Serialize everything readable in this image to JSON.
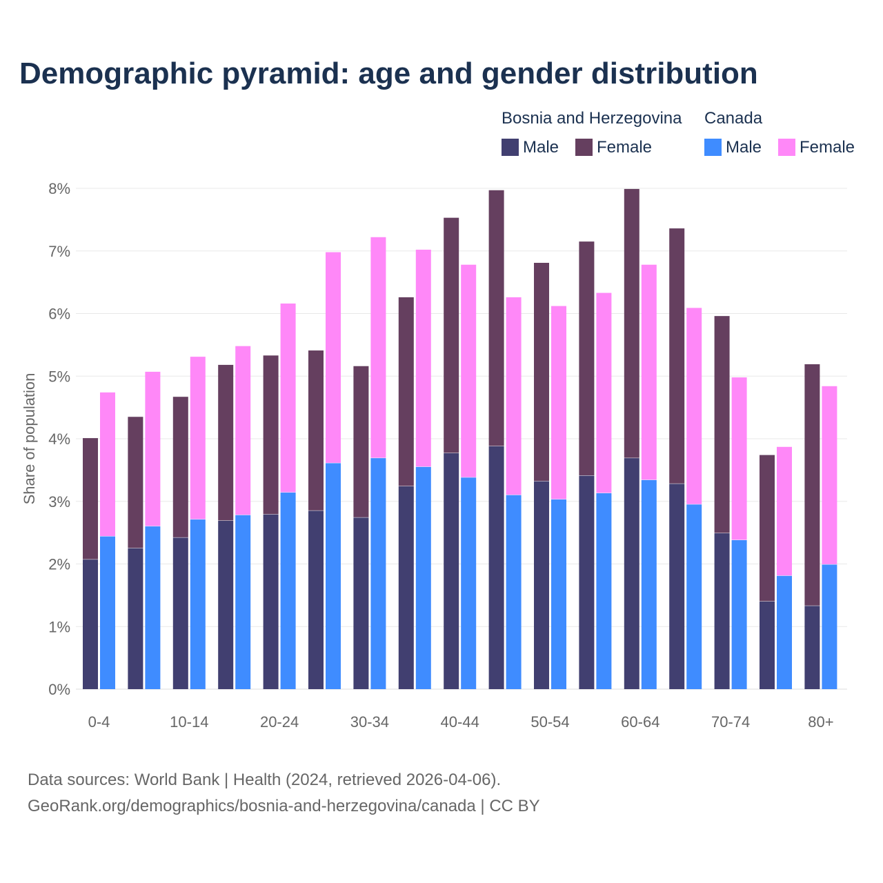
{
  "title": "Demographic pyramid: age and gender distribution",
  "legend": {
    "group1": "Bosnia and Herzegovina",
    "group2": "Canada",
    "male": "Male",
    "female": "Female"
  },
  "colors": {
    "bih_male": "#413f70",
    "bih_female": "#653f5f",
    "can_male": "#3f8cff",
    "can_female": "#ff88f8"
  },
  "source_line1": "Data sources: World Bank | Health (2024, retrieved 2026-04-06).",
  "source_line2": "GeoRank.org/demographics/bosnia-and-herzegovina/canada | CC BY",
  "chart_data": {
    "type": "bar",
    "stacked": true,
    "title": "Demographic pyramid: age and gender distribution",
    "xlabel": "",
    "ylabel": "Share of population",
    "ylim": [
      0,
      8
    ],
    "yticks": [
      "0%",
      "1%",
      "2%",
      "3%",
      "4%",
      "5%",
      "6%",
      "7%",
      "8%"
    ],
    "categories": [
      "0-4",
      "5-9",
      "10-14",
      "15-19",
      "20-24",
      "25-29",
      "30-34",
      "35-39",
      "40-44",
      "45-49",
      "50-54",
      "55-59",
      "60-64",
      "65-69",
      "70-74",
      "75-79",
      "80+"
    ],
    "xtick_labels": [
      "0-4",
      "10-14",
      "20-24",
      "30-34",
      "40-44",
      "50-54",
      "60-64",
      "70-74",
      "80+"
    ],
    "series": [
      {
        "name": "Bosnia and Herzegovina Male",
        "stack": "Bosnia and Herzegovina",
        "values": [
          2.07,
          2.25,
          2.42,
          2.69,
          2.79,
          2.85,
          2.74,
          3.24,
          3.77,
          3.88,
          3.32,
          3.41,
          3.69,
          3.28,
          2.49,
          1.4,
          1.33
        ]
      },
      {
        "name": "Bosnia and Herzegovina Female",
        "stack": "Bosnia and Herzegovina",
        "values": [
          1.94,
          2.1,
          2.25,
          2.49,
          2.54,
          2.56,
          2.42,
          3.02,
          3.76,
          4.09,
          3.49,
          3.74,
          4.3,
          4.08,
          3.47,
          2.34,
          3.86
        ]
      },
      {
        "name": "Canada Male",
        "stack": "Canada",
        "values": [
          2.44,
          2.6,
          2.71,
          2.78,
          3.14,
          3.61,
          3.69,
          3.55,
          3.38,
          3.1,
          3.03,
          3.13,
          3.34,
          2.95,
          2.38,
          1.81,
          1.99
        ]
      },
      {
        "name": "Canada Female",
        "stack": "Canada",
        "values": [
          2.3,
          2.47,
          2.6,
          2.7,
          3.02,
          3.37,
          3.53,
          3.47,
          3.4,
          3.16,
          3.09,
          3.2,
          3.44,
          3.14,
          2.6,
          2.06,
          2.85
        ]
      }
    ],
    "grid": true,
    "legend_position": "top-right"
  }
}
